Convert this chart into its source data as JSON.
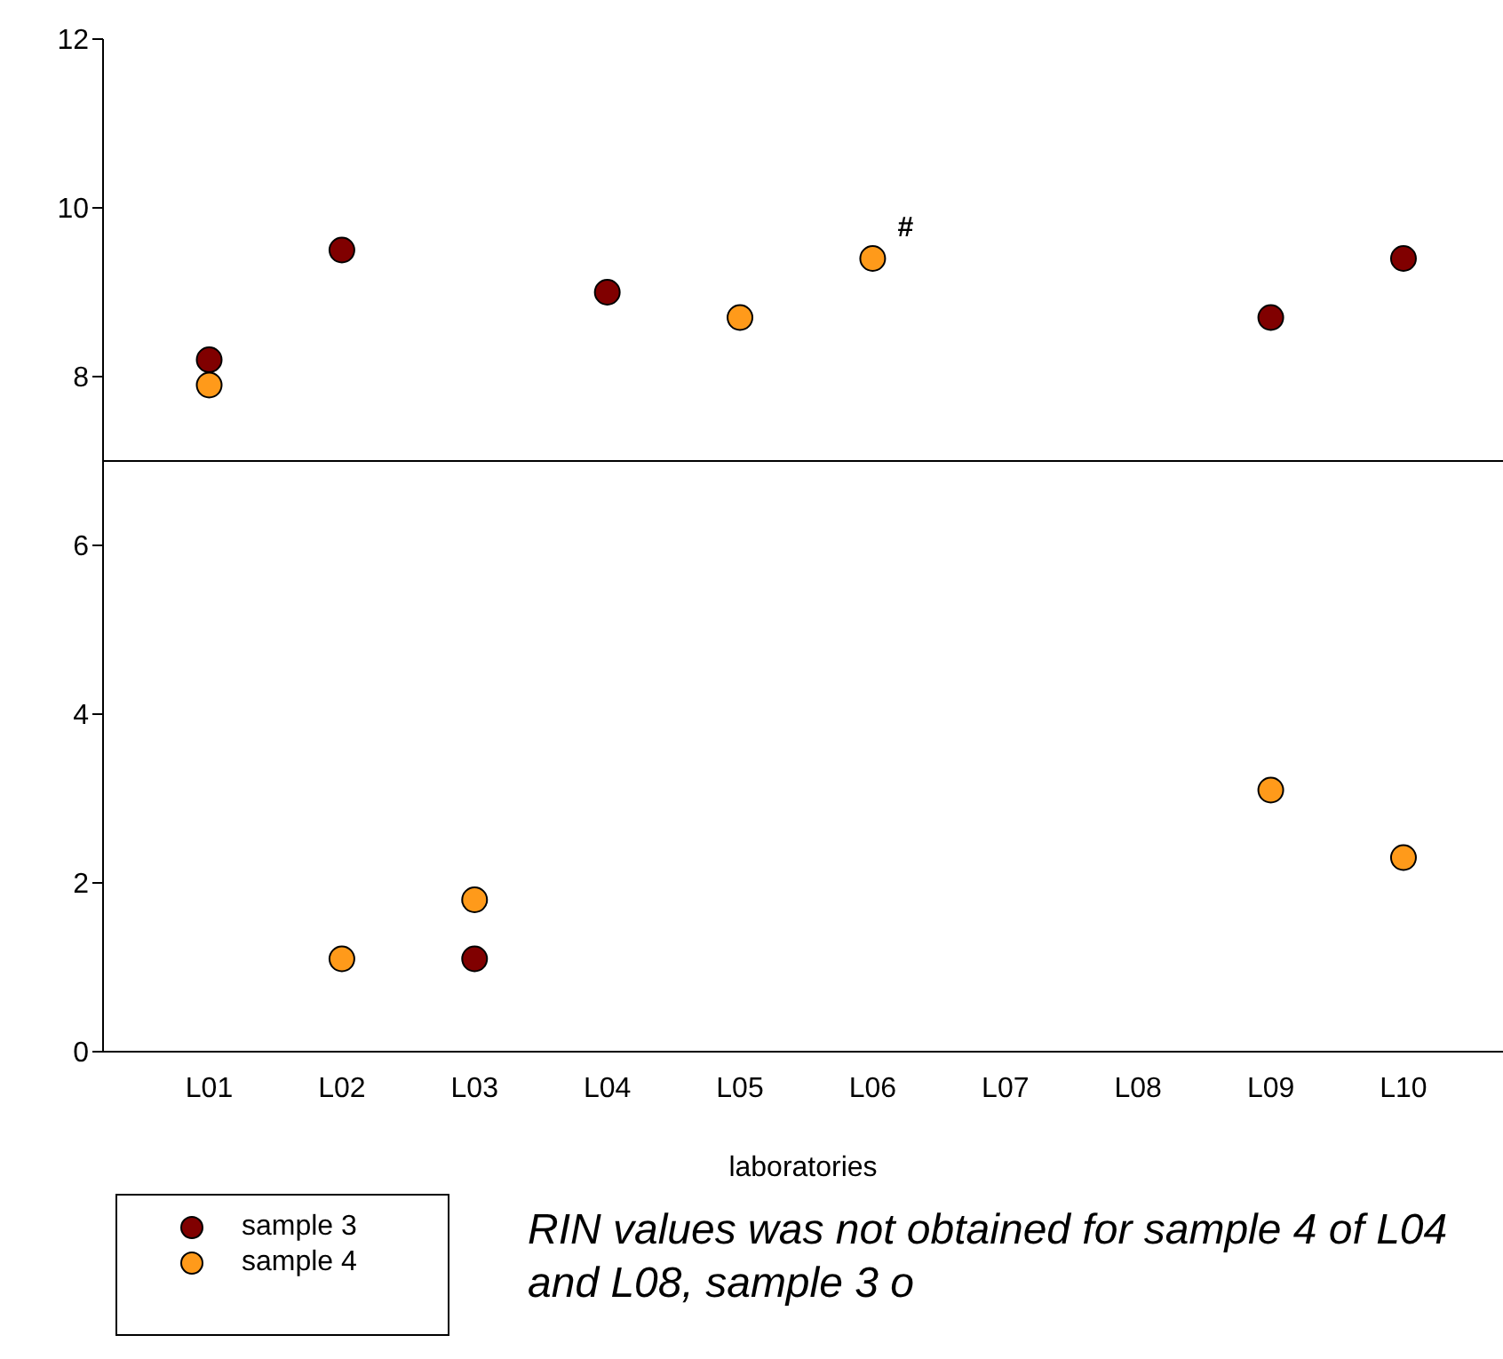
{
  "chart_data": {
    "type": "scatter",
    "xlabel": "laboratories",
    "categories": [
      "L01",
      "L02",
      "L03",
      "L04",
      "L05",
      "L06",
      "L07",
      "L08",
      "L09",
      "L10"
    ],
    "series": [
      {
        "name": "sample 3",
        "color": "#800000",
        "values": [
          8.2,
          9.5,
          1.1,
          9.0,
          null,
          null,
          null,
          null,
          8.7,
          9.4
        ]
      },
      {
        "name": "sample 4",
        "color": "#ff9a1a",
        "values": [
          7.9,
          1.1,
          1.8,
          null,
          8.7,
          9.4,
          null,
          null,
          3.1,
          2.3
        ]
      }
    ],
    "ylim": [
      0,
      12
    ],
    "yticks": [
      0,
      2,
      4,
      6,
      8,
      10,
      12
    ],
    "grid": false,
    "marker": "circle",
    "legend": "bottom left",
    "ref_lines": [
      {
        "axis": "y",
        "value": 7,
        "color": "#000000"
      }
    ],
    "annotations": [
      {
        "text": "#",
        "x": "L06",
        "y": 9.4
      },
      "RIN values was not obtained for sample 4 of L04 and L08, sample 3 o"
    ]
  }
}
